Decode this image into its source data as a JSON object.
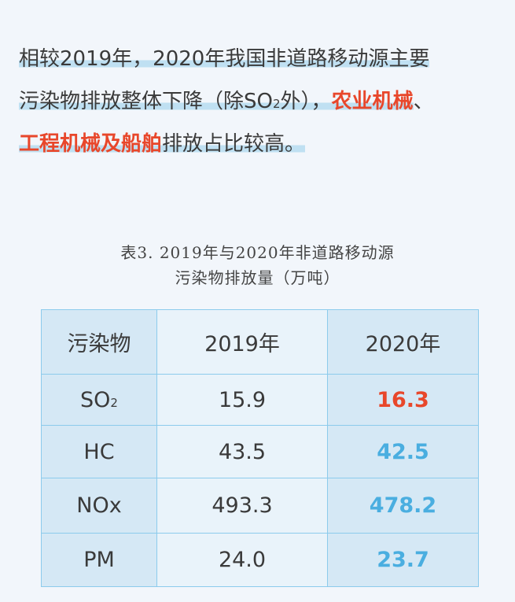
{
  "paragraph": {
    "line1": "相较2019年，2020年我国非道路移动源主要",
    "line2_a": "污染物排放整体下降（除SO",
    "line2_sub": "2",
    "line2_b": "外），",
    "line2_red": "农业机械",
    "line2_c": "、",
    "line3_red": "工程机械及船舶",
    "line3_b": "排放占比较高。"
  },
  "caption": {
    "line1": "表3.  2019年与2020年非道路移动源",
    "line2": "污染物排放量（万吨）"
  },
  "table": {
    "headers": [
      "污染物",
      "2019年",
      "2020年"
    ],
    "rows": [
      {
        "name": "SO",
        "sub": "2",
        "v2019": "15.9",
        "v2020": "16.3",
        "trend": "up"
      },
      {
        "name": "HC",
        "sub": "",
        "v2019": "43.5",
        "v2020": "42.5",
        "trend": "down"
      },
      {
        "name": "NOx",
        "sub": "",
        "v2019": "493.3",
        "v2020": "478.2",
        "trend": "down"
      },
      {
        "name": "PM",
        "sub": "",
        "v2019": "24.0",
        "v2020": "23.7",
        "trend": "down"
      }
    ]
  },
  "colors": {
    "increase": "#e8472b",
    "decrease": "#4aaee0",
    "border": "#8ccbec"
  }
}
